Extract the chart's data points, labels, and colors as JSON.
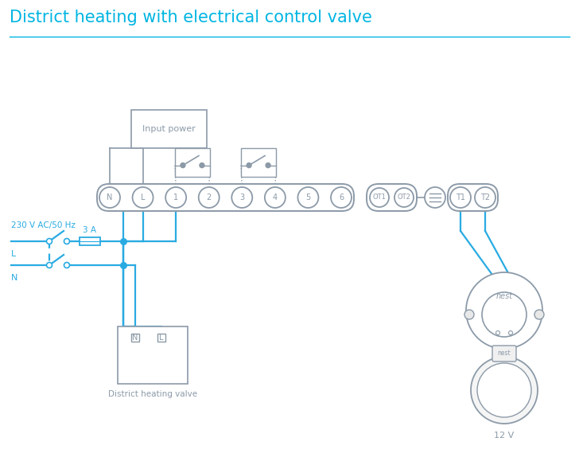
{
  "title": "District heating with electrical control valve",
  "title_color": "#00B5E2",
  "line_color": "#29ABE2",
  "box_color": "#8C9AA8",
  "bg_color": "#ffffff",
  "terminal_labels": [
    "N",
    "L",
    "1",
    "2",
    "3",
    "4",
    "5",
    "6"
  ],
  "terminal_ot_labels": [
    "OT1",
    "OT2"
  ],
  "terminal_t_labels": [
    "T1",
    "T2"
  ],
  "label_valve": "District heating valve",
  "label_nest": "12 V",
  "label_3A": "3 A",
  "label_230": "230 V AC/50 Hz",
  "label_L": "L",
  "label_N": "N",
  "label_input_power": "Input power",
  "label_nest_logo": "nest"
}
